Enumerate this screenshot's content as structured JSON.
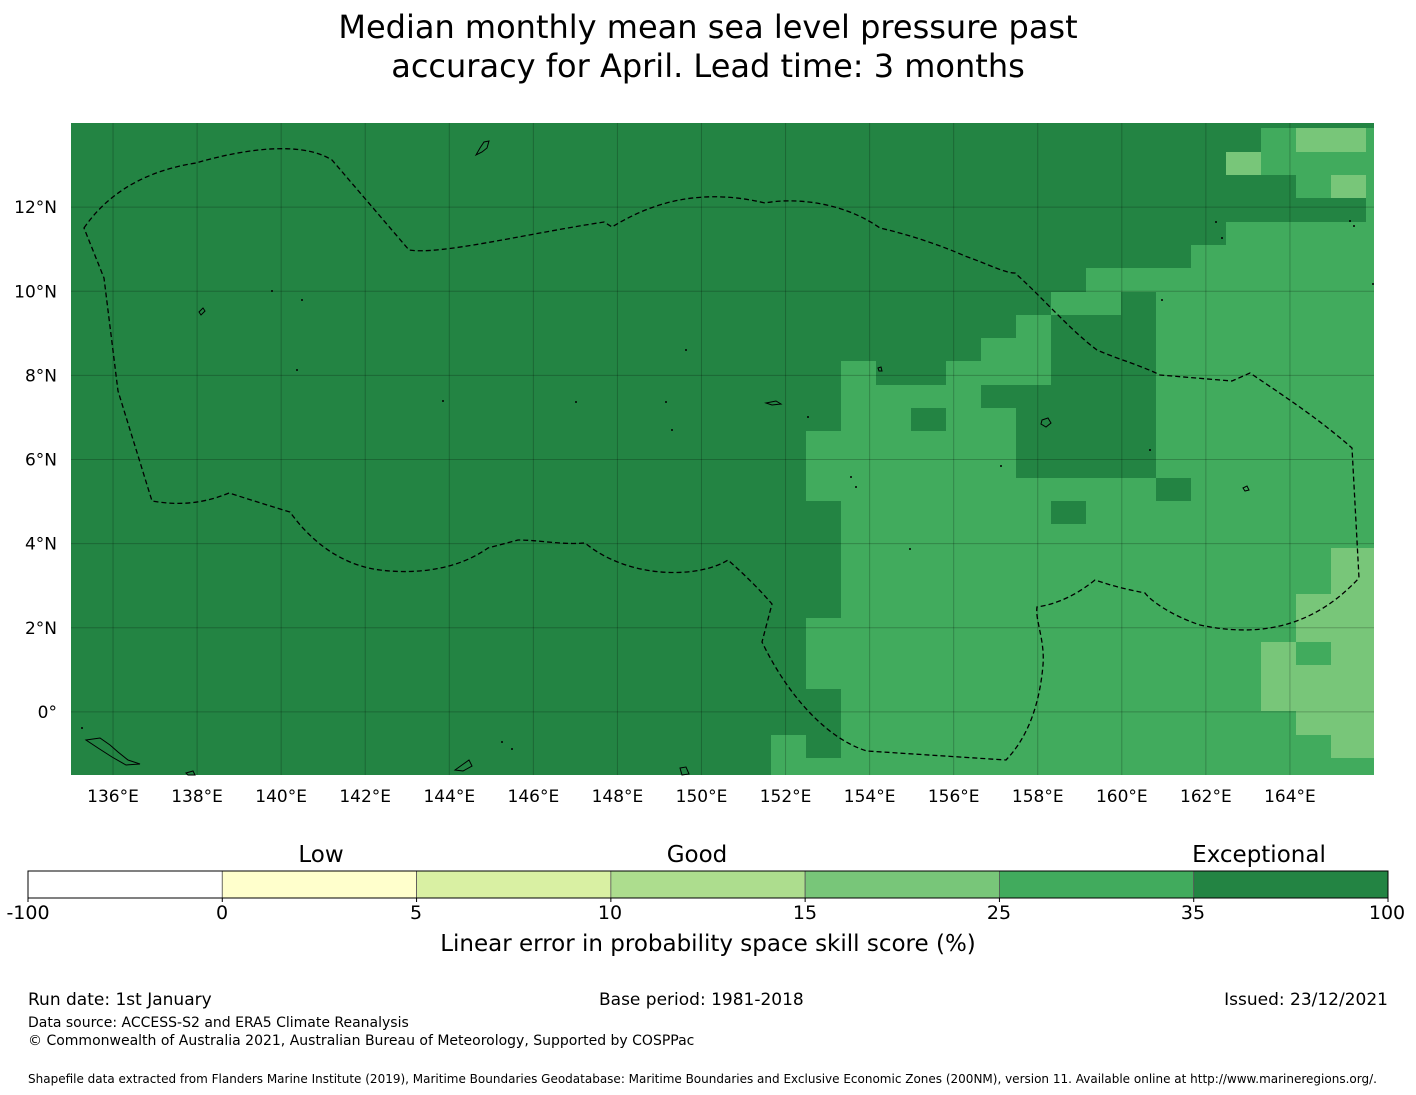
{
  "title_line1": "Median monthly mean sea level pressure past",
  "title_line2": "accuracy for April. Lead time: 3 months",
  "map": {
    "lon_range": [
      135.0,
      166.0
    ],
    "lat_range": [
      -1.5,
      14.0
    ],
    "lon_ticks": [
      "136°E",
      "138°E",
      "140°E",
      "142°E",
      "144°E",
      "146°E",
      "148°E",
      "150°E",
      "152°E",
      "154°E",
      "156°E",
      "158°E",
      "160°E",
      "162°E",
      "164°E"
    ],
    "lat_ticks": [
      "12°N",
      "10°N",
      "8°N",
      "6°N",
      "4°N",
      "2°N",
      "0°"
    ],
    "eez_boundary_style": "dashed black",
    "coastline_style": "thin black"
  },
  "colorbar": {
    "category_labels": [
      "Low",
      "Good",
      "Exceptional"
    ],
    "tick_labels": [
      "-100",
      "0",
      "5",
      "10",
      "15",
      "25",
      "35",
      "100"
    ],
    "bin_colors": [
      "#ffffff",
      "#ffffcc",
      "#d9f0a3",
      "#addd8e",
      "#78c679",
      "#41ab5d",
      "#238443"
    ],
    "xlabel": "Linear error in probability space skill score (%)"
  },
  "chart_data": {
    "type": "heatmap",
    "title": "Median monthly mean sea level pressure past accuracy for April. Lead time: 3 months",
    "variable": "Linear error in probability space skill score (%)",
    "bins": [
      -100,
      0,
      5,
      10,
      15,
      25,
      35,
      100
    ],
    "grid_note": "Most of the domain west of ~152°E falls in the 35–100 bin; east of ~153°E mostly 25–35 bin with a 35–100 patch near 158–161°E, 5–8°N; 15–25 bin near 163–166°E south of 3°N",
    "xlim": [
      135.0,
      166.0
    ],
    "ylim": [
      -1.5,
      14.0
    ]
  },
  "footer": {
    "run_date": "Run date: 1st January",
    "base_period": "Base period: 1981-2018",
    "issued": "Issued: 23/12/2021",
    "data_source": "Data source: ACCESS-S2 and ERA5 Climate Reanalysis",
    "copyright": "© Commonwealth of Australia 2021, Australian Bureau of Meteorology, Supported by COSPPac",
    "shapefile": "Shapefile data extracted from Flanders Marine Institute (2019), Maritime Boundaries Geodatabase: Maritime Boundaries and Exclusive Economic Zones (200NM), version 11. Available online at http://www.marineregions.org/."
  }
}
